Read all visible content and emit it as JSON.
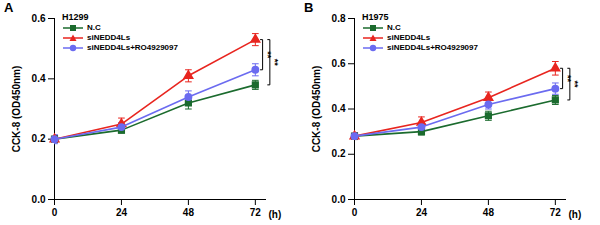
{
  "chart_data": [
    {
      "type": "line",
      "panel": "A",
      "title": "H1299",
      "x": [
        0,
        24,
        48,
        72
      ],
      "xlim": [
        0,
        76
      ],
      "xticks": [
        0,
        24,
        48,
        72
      ],
      "x_label": "(h)",
      "y_label": "CCK-8 (OD450nm)",
      "ylim": [
        0,
        0.6
      ],
      "yticks": [
        {
          "value": 0,
          "label": "0.0"
        },
        0.2,
        0.4,
        0.6
      ],
      "legend": "top-left",
      "series": [
        {
          "name": "N.C",
          "color": "#1b6b2e",
          "marker": "square",
          "values": [
            0.2,
            0.23,
            0.32,
            0.38
          ],
          "errors": [
            0.012,
            0.01,
            0.02,
            0.015
          ]
        },
        {
          "name": "siNEDD4Ls",
          "color": "#e8251f",
          "marker": "triangle",
          "values": [
            0.2,
            0.25,
            0.41,
            0.53
          ],
          "errors": [
            0.01,
            0.02,
            0.02,
            0.02
          ]
        },
        {
          "name": "siNEDD4Ls+RO4929097",
          "color": "#6b6bf0",
          "marker": "circle",
          "values": [
            0.2,
            0.24,
            0.34,
            0.43
          ],
          "errors": [
            0.015,
            0.015,
            0.02,
            0.02
          ]
        }
      ],
      "annotations": [
        {
          "label": "**",
          "x": 72,
          "between": [
            "siNEDD4Ls",
            "siNEDD4Ls+RO4929097"
          ]
        },
        {
          "label": "**",
          "x": 72,
          "between": [
            "siNEDD4Ls",
            "N.C"
          ]
        }
      ]
    },
    {
      "type": "line",
      "panel": "B",
      "title": "H1975",
      "x": [
        0,
        24,
        48,
        72
      ],
      "xlim": [
        0,
        76
      ],
      "xticks": [
        0,
        24,
        48,
        72
      ],
      "x_label": "(h)",
      "y_label": "CCK-8 (OD450nm)",
      "ylim": [
        0,
        0.8
      ],
      "yticks": [
        {
          "value": 0,
          "label": "0.0"
        },
        0.2,
        0.4,
        0.6,
        0.8
      ],
      "legend": "top-left",
      "series": [
        {
          "name": "N.C",
          "color": "#1b6b2e",
          "marker": "square",
          "values": [
            0.28,
            0.3,
            0.37,
            0.44
          ],
          "errors": [
            0.015,
            0.015,
            0.02,
            0.02
          ]
        },
        {
          "name": "siNEDD4Ls",
          "color": "#e8251f",
          "marker": "triangle",
          "values": [
            0.28,
            0.34,
            0.45,
            0.58
          ],
          "errors": [
            0.015,
            0.025,
            0.025,
            0.03
          ]
        },
        {
          "name": "siNEDD4Ls+RO4929097",
          "color": "#6b6bf0",
          "marker": "circle",
          "values": [
            0.28,
            0.32,
            0.42,
            0.49
          ],
          "errors": [
            0.015,
            0.02,
            0.02,
            0.025
          ]
        }
      ],
      "annotations": [
        {
          "label": "**",
          "x": 72,
          "between": [
            "siNEDD4Ls",
            "siNEDD4Ls+RO4929097"
          ]
        },
        {
          "label": "**",
          "x": 72,
          "between": [
            "siNEDD4Ls",
            "N.C"
          ]
        }
      ]
    }
  ]
}
